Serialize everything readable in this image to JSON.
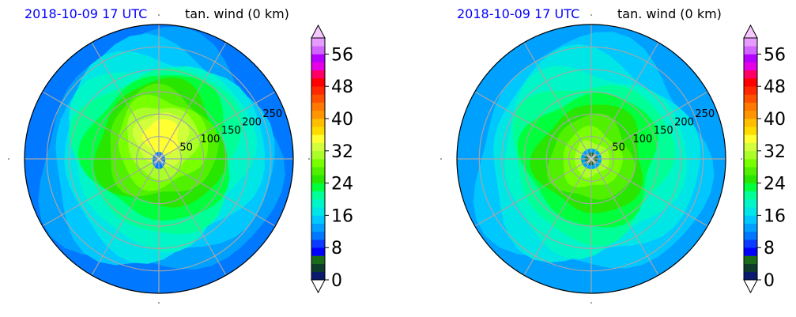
{
  "chart_data": [
    {
      "type": "polar_contour",
      "time_label": "2018-10-09 17 UTC",
      "variable_label": "tan. wind (0 km)",
      "radius_ticks": [
        50,
        100,
        150,
        200,
        250
      ],
      "radius_unit": "km",
      "spokes_deg": [
        0,
        30,
        60,
        90,
        120,
        150,
        180,
        210,
        240,
        270,
        300,
        330
      ],
      "colorbar": {
        "ticks": [
          0,
          8,
          16,
          24,
          32,
          40,
          48,
          56
        ],
        "min": 0,
        "max": 60,
        "step": 2,
        "extend": "both"
      },
      "field": {
        "max_value": 34,
        "core": "asymmetric, strongest north-northeast of center",
        "outer_value": 10
      }
    },
    {
      "type": "polar_contour",
      "time_label": "2018-10-09 17 UTC",
      "variable_label": "tan. wind (0 km)",
      "radius_ticks": [
        50,
        100,
        150,
        200,
        250
      ],
      "radius_unit": "km",
      "spokes_deg": [
        0,
        30,
        60,
        90,
        120,
        150,
        180,
        210,
        240,
        270,
        300,
        330
      ],
      "colorbar": {
        "ticks": [
          0,
          8,
          16,
          24,
          32,
          40,
          48,
          56
        ],
        "min": 0,
        "max": 60,
        "step": 2,
        "extend": "both"
      },
      "field": {
        "max_value": 30,
        "core": "symmetric eyewall ring around calm eye",
        "outer_value": 12
      }
    }
  ],
  "colormap": [
    "#0a1a6e",
    "#0d3d2a",
    "#1a6b1a",
    "#0000ff",
    "#0a3cff",
    "#0078ff",
    "#00a0ff",
    "#00c8ff",
    "#00e6e6",
    "#00f5c8",
    "#00ff96",
    "#00ff3c",
    "#28e600",
    "#50f000",
    "#78ff00",
    "#aaff28",
    "#d2ff3c",
    "#ffff32",
    "#ffdc00",
    "#ffbe00",
    "#ff9600",
    "#ff7800",
    "#ff5000",
    "#ff2800",
    "#ff0000",
    "#ff0064",
    "#e600e6",
    "#b400ff",
    "#d264ff",
    "#e69bff",
    "#f5c8ff"
  ]
}
